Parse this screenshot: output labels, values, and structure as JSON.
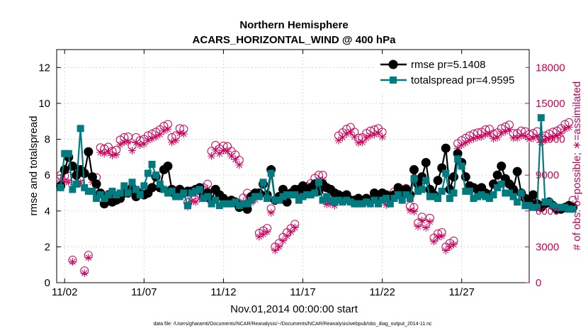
{
  "chart_data": {
    "type": "line",
    "title": "Northern Hemisphere",
    "subtitle": "ACARS_HORIZONTAL_WIND @ 400 hPa",
    "xlabel": "Nov.01,2014 00:00:00 start",
    "ylabel": "rmse and totalspread",
    "y2label": "# of obs: o=possible; ∗=assimilated",
    "footnote": "data file: /Users/gharamti/Documents/NCAR/Reanalysis/~/Documents/NCAR/Reanalysis/webpub/obs_diag_output_2014-11.nc",
    "xlim": [
      1.5,
      31.25
    ],
    "ylim": [
      0,
      13
    ],
    "y2lim": [
      0,
      19500
    ],
    "x_ticks": [
      2,
      7,
      12,
      17,
      22,
      27
    ],
    "x_tick_labels": [
      "11/02",
      "11/07",
      "11/12",
      "11/17",
      "11/22",
      "11/27"
    ],
    "y_ticks": [
      0,
      2,
      4,
      6,
      8,
      10,
      12
    ],
    "y2_ticks": [
      0,
      3000,
      6000,
      9000,
      12000,
      15000,
      18000
    ],
    "legend_position": "top-right",
    "colors": {
      "rmse": "#000000",
      "totalspread": "#007b80",
      "obs": "#c8005a"
    },
    "series": [
      {
        "name": "rmse",
        "legend": "rmse pr=5.1408",
        "values": [
          5.4,
          6.3,
          7.0,
          6.5,
          6.0,
          6.3,
          6.1,
          7.3,
          5.9,
          5.5,
          5.0,
          4.4,
          4.9,
          4.5,
          4.6,
          4.7,
          5.0,
          5.0,
          5.3,
          4.8,
          5.0,
          4.9,
          5.0,
          5.3,
          5.9,
          5.3,
          6.3,
          6.5,
          5.2,
          4.9,
          5.2,
          5.0,
          5.1,
          5.1,
          5.2,
          5.3,
          4.9,
          5.0,
          4.6,
          5.2,
          4.9,
          4.7,
          4.5,
          4.6,
          4.5,
          4.2,
          4.3,
          4.1,
          4.8,
          5.0,
          5.0,
          5.5,
          4.9,
          6.3,
          4.6,
          4.8,
          5.2,
          4.5,
          5.0,
          5.2,
          5.2,
          5.4,
          5.0,
          5.3,
          5.5,
          5.1,
          5.5,
          5.3,
          5.2,
          5.0,
          4.9,
          4.8,
          4.9,
          4.6,
          4.6,
          4.7,
          4.5,
          4.7,
          4.6,
          5.0,
          4.6,
          5.0,
          4.9,
          4.7,
          4.9,
          5.3,
          4.9,
          5.2,
          4.9,
          6.3,
          5.5,
          5.9,
          6.7,
          5.2,
          4.9,
          5.7,
          6.4,
          7.5,
          5.2,
          5.9,
          7.2,
          6.7,
          5.9,
          5.4,
          5.3,
          5.2,
          5.3,
          5.0,
          4.9,
          5.5,
          6.0,
          6.5,
          5.8,
          5.5,
          5.2,
          6.2,
          5.0,
          4.7,
          4.6,
          4.9,
          4.4,
          4.2,
          4.4,
          4.5,
          4.3,
          4.1,
          4.1,
          4.2,
          4.3,
          4.2
        ],
        "legend_entry": "rmse"
      },
      {
        "name": "totalspread",
        "legend": "totalspread pr=4.9595",
        "values": [
          5.3,
          7.2,
          7.2,
          5.2,
          5.5,
          8.6,
          5.3,
          5.1,
          5.1,
          4.7,
          4.9,
          4.7,
          4.9,
          5.1,
          4.9,
          5.0,
          5.4,
          5.0,
          5.6,
          5.2,
          4.9,
          5.4,
          6.1,
          6.6,
          6.0,
          5.5,
          5.2,
          5.0,
          5.1,
          4.8,
          4.8,
          5.0,
          4.3,
          5.0,
          5.1,
          5.2,
          4.7,
          4.8,
          4.4,
          4.6,
          4.3,
          4.4,
          4.4,
          4.4,
          4.5,
          4.3,
          4.4,
          4.4,
          4.6,
          4.8,
          4.8,
          5.6,
          4.7,
          6.1,
          4.6,
          4.6,
          4.8,
          4.9,
          4.9,
          4.9,
          4.6,
          4.8,
          4.9,
          4.9,
          5.0,
          5.6,
          4.6,
          4.8,
          4.6,
          4.5,
          4.6,
          4.5,
          4.6,
          4.5,
          4.4,
          4.4,
          4.4,
          4.5,
          4.4,
          4.6,
          4.4,
          4.6,
          4.7,
          4.4,
          4.7,
          4.9,
          4.6,
          4.9,
          4.7,
          5.8,
          5.1,
          5.2,
          5.7,
          4.8,
          4.8,
          4.7,
          5.1,
          6.1,
          4.7,
          5.0,
          6.9,
          6.5,
          5.1,
          5.1,
          4.7,
          4.8,
          4.9,
          4.8,
          4.7,
          4.9,
          5.3,
          5.5,
          5.0,
          5.0,
          4.8,
          4.5,
          5.0,
          4.3,
          4.3,
          4.2,
          4.2,
          9.2,
          4.5,
          4.5,
          4.3,
          4.2,
          4.2,
          4.2,
          4.1,
          4.1
        ],
        "legend_entry": "totalspread"
      }
    ],
    "obs_possible": [
      9000,
      8950,
      8900,
      1900,
      8950,
      8850,
      1000,
      2300,
      8850,
      8800,
      11300,
      11200,
      11350,
      11000,
      11100,
      11950,
      12150,
      12200,
      11450,
      12150,
      11900,
      12000,
      12300,
      12450,
      12600,
      12800,
      13100,
      13250,
      12150,
      12300,
      12900,
      12850,
      6700,
      7200,
      7150,
      7450,
      7950,
      8250,
      11000,
      11500,
      11200,
      11450,
      11400,
      11000,
      10700,
      10250,
      7100,
      7500,
      7050,
      7300,
      4150,
      4350,
      4550,
      6200,
      3000,
      3300,
      3800,
      4200,
      4550,
      4900,
      7700,
      7800,
      8050,
      8300,
      8750,
      9000,
      9000,
      6900,
      6950,
      6800,
      12300,
      12550,
      12850,
      13000,
      12600,
      12100,
      12150,
      12500,
      12700,
      12800,
      12900,
      12600,
      6850,
      7300,
      7600,
      7700,
      7800,
      7900,
      6400,
      6300,
      5000,
      5500,
      4900,
      5400,
      3750,
      4100,
      4200,
      3000,
      3300,
      3500,
      11650,
      11900,
      12100,
      12300,
      12450,
      12550,
      12600,
      12800,
      12850,
      12450,
      12550,
      12900,
      13050,
      13200,
      12500,
      12500,
      12700,
      12650,
      12400,
      12500,
      12650,
      12150,
      12300,
      12450,
      12600,
      12700,
      12900,
      13250,
      13400,
      6900
    ],
    "obs_assimilated": [
      8500,
      8450,
      8400,
      1750,
      8500,
      8350,
      800,
      2100,
      8400,
      8350,
      10900,
      10800,
      10950,
      10650,
      10700,
      11550,
      11750,
      11800,
      11050,
      11700,
      11500,
      11600,
      11900,
      12050,
      12200,
      12400,
      12700,
      12850,
      11750,
      11900,
      12500,
      12450,
      6350,
      6800,
      6750,
      7050,
      7550,
      7850,
      10600,
      11100,
      10800,
      11050,
      11000,
      10600,
      10300,
      9850,
      6750,
      7100,
      6700,
      6950,
      3850,
      4050,
      4250,
      5850,
      2700,
      3000,
      3500,
      3900,
      4250,
      4600,
      7350,
      7450,
      7700,
      7950,
      8350,
      8600,
      8600,
      6550,
      6600,
      6450,
      11900,
      12150,
      12450,
      12600,
      12200,
      11700,
      11750,
      12100,
      12300,
      12400,
      12500,
      12200,
      6500,
      6900,
      7200,
      7300,
      7400,
      7500,
      6050,
      5950,
      4700,
      5200,
      4600,
      5100,
      3450,
      3800,
      3900,
      2700,
      3000,
      3200,
      11250,
      11500,
      11700,
      11900,
      12050,
      12150,
      12200,
      12400,
      12450,
      12050,
      12150,
      12500,
      12650,
      12800,
      12100,
      12100,
      12300,
      12250,
      12000,
      12100,
      12250,
      11750,
      11900,
      12050,
      12200,
      12300,
      12500,
      12850,
      13000,
      6550
    ]
  }
}
